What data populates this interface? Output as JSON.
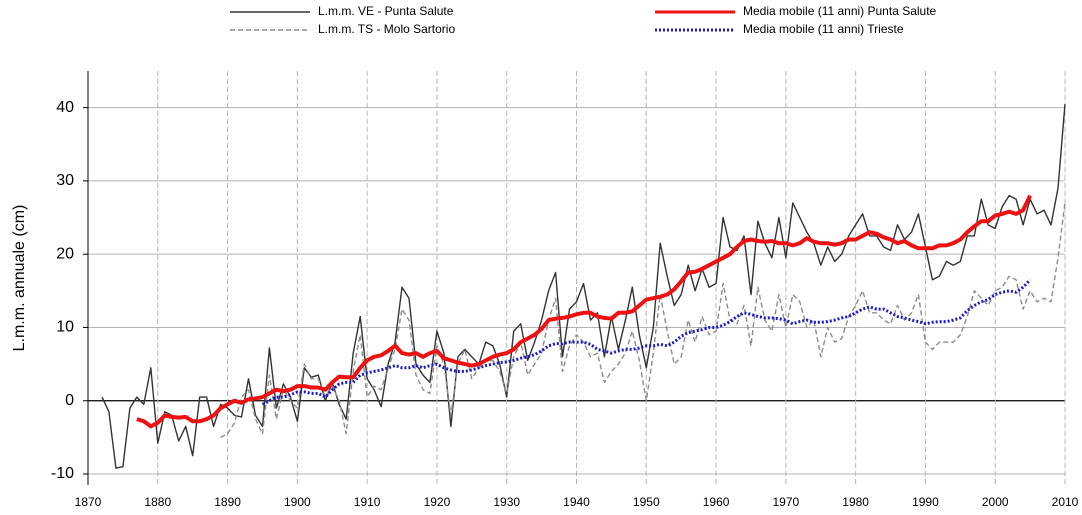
{
  "chart_data": {
    "type": "line",
    "y_label": "L.m.m. annuale (cm)",
    "x": [
      1872,
      1873,
      1874,
      1875,
      1876,
      1877,
      1878,
      1879,
      1880,
      1881,
      1882,
      1883,
      1884,
      1885,
      1886,
      1887,
      1888,
      1889,
      1890,
      1891,
      1892,
      1893,
      1894,
      1895,
      1896,
      1897,
      1898,
      1899,
      1900,
      1901,
      1902,
      1903,
      1904,
      1905,
      1906,
      1907,
      1908,
      1909,
      1910,
      1911,
      1912,
      1913,
      1914,
      1915,
      1916,
      1917,
      1918,
      1919,
      1920,
      1921,
      1922,
      1923,
      1924,
      1925,
      1926,
      1927,
      1928,
      1929,
      1930,
      1931,
      1932,
      1933,
      1934,
      1935,
      1936,
      1937,
      1938,
      1939,
      1940,
      1941,
      1942,
      1943,
      1944,
      1945,
      1946,
      1947,
      1948,
      1949,
      1950,
      1951,
      1952,
      1953,
      1954,
      1955,
      1956,
      1957,
      1958,
      1959,
      1960,
      1961,
      1962,
      1963,
      1964,
      1965,
      1966,
      1967,
      1968,
      1969,
      1970,
      1971,
      1972,
      1973,
      1974,
      1975,
      1976,
      1977,
      1978,
      1979,
      1980,
      1981,
      1982,
      1983,
      1984,
      1985,
      1986,
      1987,
      1988,
      1989,
      1990,
      1991,
      1992,
      1993,
      1994,
      1995,
      1996,
      1997,
      1998,
      1999,
      2000,
      2001,
      2002,
      2003,
      2004,
      2005,
      2006,
      2007,
      2008,
      2009,
      2010
    ],
    "series": [
      {
        "name": "L.m.m. VE - Punta Salute",
        "color": "#333333",
        "style": "solid",
        "width": 1.4,
        "values": [
          0.5,
          -1.5,
          -9.2,
          -9,
          -1,
          0.5,
          -0.5,
          4.5,
          -5.8,
          -1.5,
          -2,
          -5.5,
          -3.5,
          -7.5,
          0.5,
          0.5,
          -3.5,
          -0.5,
          -1,
          -2,
          -2.2,
          3,
          -2,
          -3.5,
          7.2,
          -1,
          2.3,
          0.5,
          -2.8,
          4.5,
          3.2,
          3.5,
          0,
          2.5,
          -0.5,
          -2.5,
          6.5,
          11.5,
          3,
          1.5,
          -0.8,
          5,
          8,
          15.5,
          14,
          5,
          3.5,
          2.5,
          9.5,
          6.5,
          -3.5,
          6,
          7,
          6,
          5,
          8,
          7.5,
          5,
          0.5,
          9.5,
          10.5,
          5.5,
          8,
          11,
          15,
          17.5,
          6,
          12.5,
          13.5,
          16,
          11,
          12,
          6,
          11.5,
          7,
          11,
          15.5,
          9,
          4.5,
          10,
          21.5,
          17,
          13,
          14.5,
          18.5,
          15,
          18,
          15.5,
          16,
          25,
          21,
          20.5,
          22.5,
          14.5,
          24.5,
          21.5,
          19.5,
          25,
          19.5,
          27,
          25,
          23,
          21.5,
          18.5,
          21,
          19,
          20,
          22.5,
          24,
          25.5,
          22.5,
          22.5,
          21,
          20.5,
          24,
          22,
          23,
          25.5,
          21,
          16.5,
          17,
          19,
          18.5,
          19,
          22.5,
          22.5,
          27.5,
          24,
          23.5,
          26.5,
          28,
          27.5,
          24,
          27.5,
          25.5,
          26,
          24,
          29,
          40.5
        ]
      },
      {
        "name": "L.m.m. TS - Molo Sartorio",
        "color": "#8c8c8c",
        "style": "dashed",
        "width": 1.4,
        "values": [
          null,
          null,
          null,
          null,
          null,
          null,
          null,
          null,
          null,
          null,
          null,
          null,
          null,
          null,
          null,
          null,
          null,
          -5,
          -4.5,
          -3,
          0.5,
          1.5,
          -2.5,
          -4.5,
          3.5,
          -2.5,
          1.5,
          0,
          -1,
          5,
          3,
          3,
          0.5,
          2,
          0,
          -4.5,
          4,
          9,
          0.5,
          2,
          1.5,
          4.5,
          7,
          12.5,
          11,
          3.5,
          1.5,
          1,
          7.5,
          5,
          -2,
          5,
          7,
          3,
          4.5,
          5.5,
          5.5,
          4,
          1,
          6,
          8,
          3.5,
          5,
          6.5,
          11,
          14,
          4,
          7.5,
          9,
          8,
          6,
          6.5,
          2.5,
          4,
          5,
          6.5,
          9.5,
          5.5,
          0,
          6.5,
          14.5,
          9.5,
          5,
          6,
          11,
          8,
          11.5,
          9,
          9.5,
          16,
          11,
          10.5,
          13,
          7.5,
          15.5,
          11,
          9.5,
          14.5,
          10,
          14.5,
          13.5,
          10,
          11,
          6,
          10,
          8,
          8.5,
          11.5,
          13,
          15,
          12,
          12,
          11,
          10.5,
          13,
          11,
          12,
          14.5,
          8,
          7,
          8,
          8,
          8,
          9,
          11.5,
          15,
          14,
          13,
          15,
          15.5,
          17,
          16.5,
          12.5,
          15,
          13.5,
          14,
          13.5,
          19.5,
          27
        ]
      },
      {
        "name": "Media mobile (11 anni) Punta Salute",
        "color": "#ee1111",
        "style": "solid",
        "width": 4,
        "values": [
          null,
          null,
          null,
          null,
          null,
          -2.5,
          -2.8,
          -3.5,
          -3,
          -2,
          -2.2,
          -2.3,
          -2.2,
          -2.8,
          -2.8,
          -2.5,
          -2,
          -1,
          -0.5,
          0,
          -0.3,
          0.2,
          0.3,
          0.5,
          1,
          1.5,
          1.3,
          1.5,
          2,
          2,
          1.8,
          1.8,
          1.5,
          2.5,
          3.3,
          3.2,
          3.2,
          4.5,
          5.5,
          6,
          6.2,
          6.8,
          7.5,
          6.5,
          6.3,
          6.5,
          6,
          6.5,
          6.8,
          5.8,
          5.5,
          5.2,
          5,
          4.8,
          5,
          5.5,
          6,
          6.3,
          6.5,
          7,
          8,
          8.5,
          9,
          9.8,
          11,
          11.2,
          11.3,
          11.5,
          11.8,
          12,
          12,
          11.5,
          11.3,
          11.2,
          12,
          12,
          12.2,
          13,
          13.8,
          14,
          14.2,
          14.5,
          15.2,
          16.3,
          17.5,
          17.6,
          18,
          18.5,
          19,
          19.5,
          20,
          21,
          21.8,
          22,
          21.8,
          21.7,
          21.8,
          21.5,
          21.5,
          21.2,
          21.5,
          22.2,
          21.7,
          21.5,
          21.5,
          21.3,
          21.5,
          22,
          22,
          22.5,
          23,
          22.8,
          22.3,
          22,
          21.5,
          21.8,
          21.2,
          20.8,
          20.8,
          20.8,
          21.2,
          21.2,
          21.5,
          22,
          23,
          23.8,
          24.5,
          24.5,
          25.3,
          25.5,
          25.8,
          25.5,
          26,
          28,
          null,
          null,
          null,
          null,
          null
        ]
      },
      {
        "name": "Media mobile (11 anni) Trieste",
        "color": "#1a1acc",
        "style": "dotted",
        "width": 3,
        "values": [
          null,
          null,
          null,
          null,
          null,
          null,
          null,
          null,
          null,
          null,
          null,
          null,
          null,
          null,
          null,
          null,
          null,
          null,
          null,
          null,
          null,
          null,
          null,
          -0.5,
          0,
          0.5,
          0.5,
          0.8,
          1.2,
          1.2,
          1,
          1,
          0.5,
          1.5,
          2.3,
          2.5,
          2.5,
          3.5,
          3.8,
          4,
          4.2,
          4.5,
          4.8,
          4.5,
          4.5,
          4.8,
          4.5,
          4.8,
          5,
          4.5,
          4.2,
          4,
          4,
          4.2,
          4.5,
          4.8,
          5,
          5.2,
          5.3,
          5.5,
          5.8,
          6,
          6.3,
          6.8,
          7.5,
          7.8,
          7.8,
          8,
          8,
          8,
          7.7,
          7,
          6.8,
          6.5,
          6.8,
          7,
          7,
          7.2,
          7.5,
          7.5,
          7.7,
          7.5,
          8,
          8.8,
          9.3,
          9.5,
          9.7,
          10,
          10,
          10.3,
          10.8,
          11.5,
          12,
          11.8,
          11.5,
          11.3,
          11.3,
          11.2,
          11,
          10.5,
          10.8,
          11,
          10.7,
          10.7,
          10.8,
          11,
          11.3,
          11.5,
          12,
          12.5,
          12.8,
          12.5,
          12.5,
          12,
          11.5,
          11.3,
          11,
          10.8,
          10.5,
          10.7,
          10.8,
          10.8,
          11,
          11.3,
          12.3,
          13,
          13.5,
          13.8,
          14.5,
          14.8,
          15,
          14.8,
          15.5,
          16.5,
          null,
          null,
          null,
          null,
          null
        ]
      }
    ],
    "xlim": [
      1870,
      2010
    ],
    "xticks": [
      1870,
      1880,
      1890,
      1900,
      1910,
      1920,
      1930,
      1940,
      1950,
      1960,
      1970,
      1980,
      1990,
      2000,
      2010
    ],
    "ylim": [
      -11.5,
      45
    ],
    "yticks": [
      -10,
      0,
      10,
      20,
      30,
      40
    ],
    "grid": true
  }
}
